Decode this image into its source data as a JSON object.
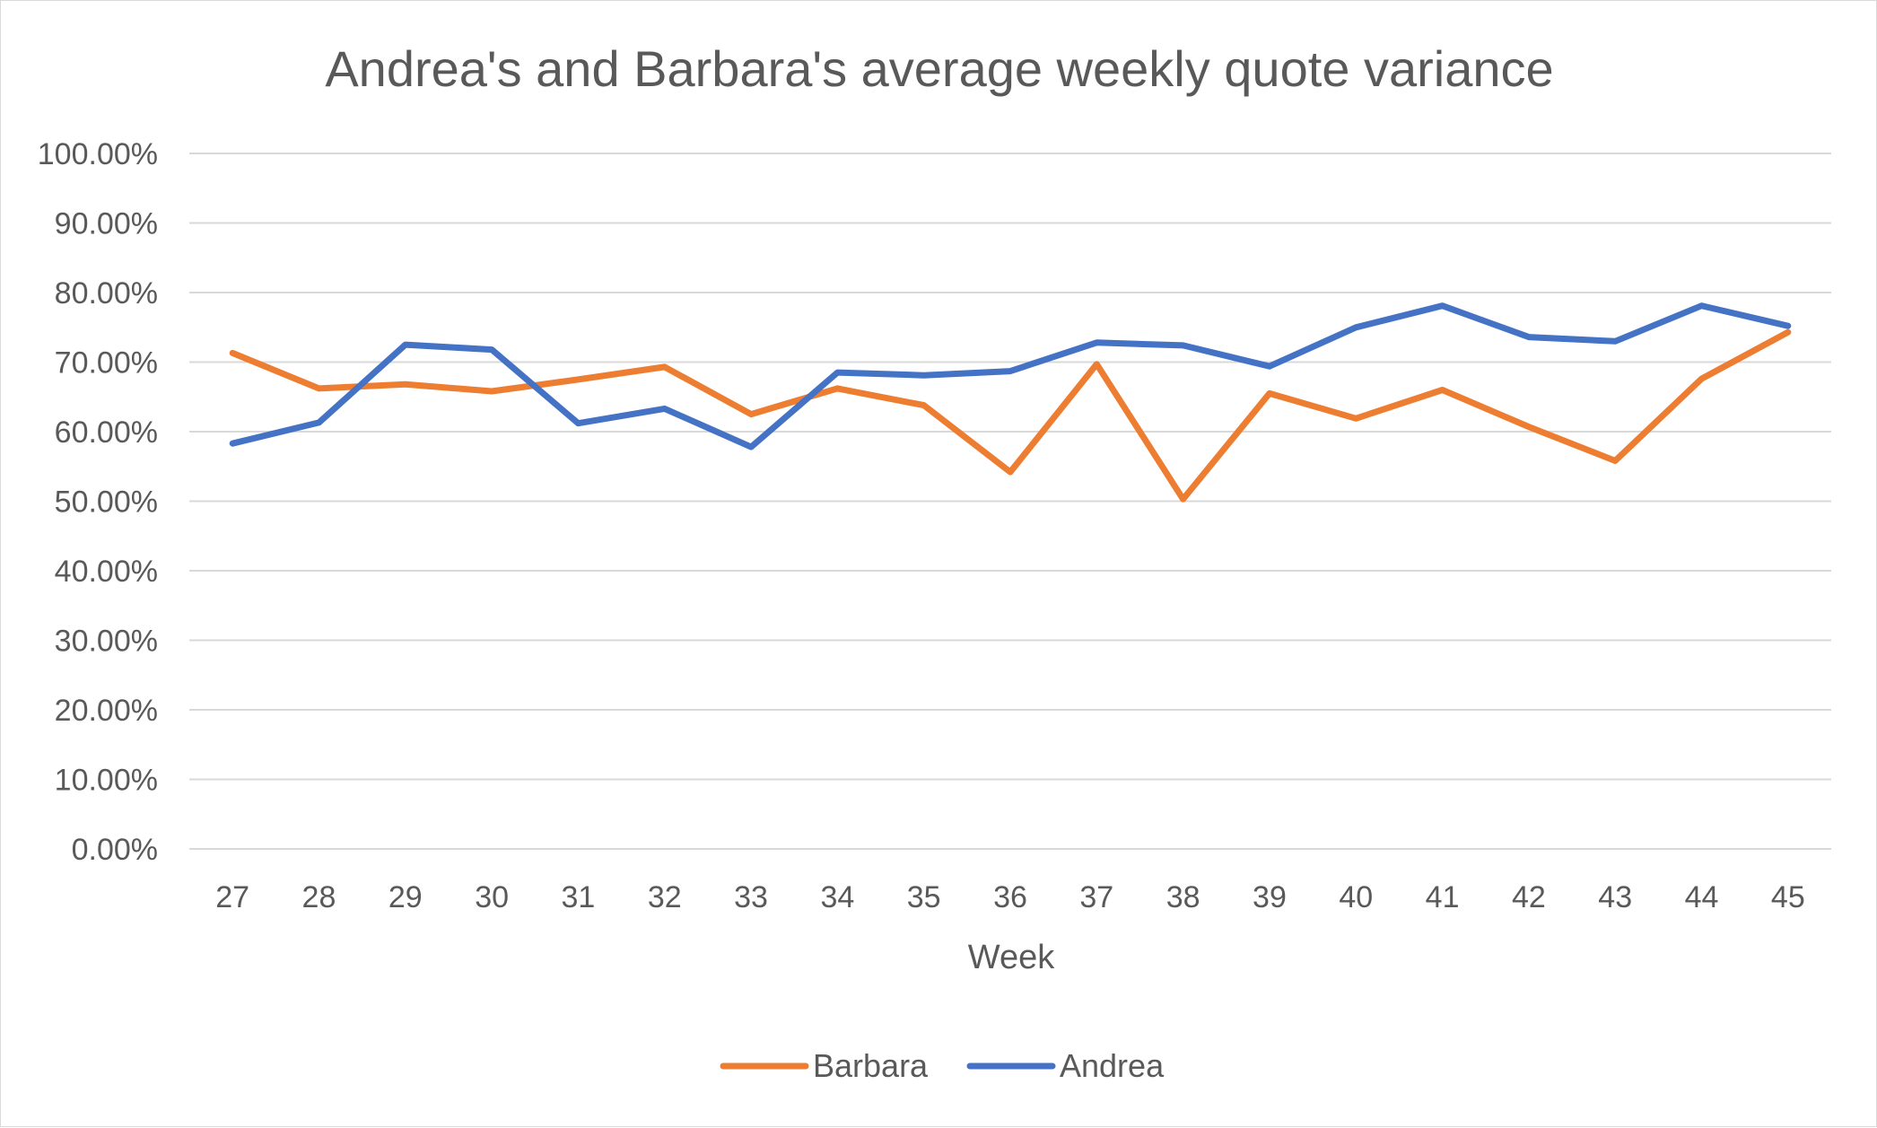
{
  "chart_data": {
    "type": "line",
    "title": "Andrea's and Barbara's average weekly quote variance",
    "xlabel": "Week",
    "ylabel": "",
    "categories": [
      "27",
      "28",
      "29",
      "30",
      "31",
      "32",
      "33",
      "34",
      "35",
      "36",
      "37",
      "38",
      "39",
      "40",
      "41",
      "42",
      "43",
      "44",
      "45"
    ],
    "ylim": [
      0,
      1
    ],
    "yticks": [
      "0.00%",
      "10.00%",
      "20.00%",
      "30.00%",
      "40.00%",
      "50.00%",
      "60.00%",
      "70.00%",
      "80.00%",
      "90.00%",
      "100.00%"
    ],
    "grid": true,
    "legend_position": "bottom",
    "series": [
      {
        "name": "Barbara",
        "color": "#ed7d31",
        "values": [
          0.713,
          0.662,
          0.668,
          0.658,
          0.675,
          0.693,
          0.625,
          0.662,
          0.638,
          0.542,
          0.697,
          0.503,
          0.655,
          0.619,
          0.66,
          0.607,
          0.558,
          0.676,
          0.743
        ]
      },
      {
        "name": "Andrea",
        "color": "#4472c4",
        "values": [
          0.583,
          0.613,
          0.725,
          0.718,
          0.612,
          0.633,
          0.578,
          0.685,
          0.681,
          0.687,
          0.728,
          0.724,
          0.694,
          0.75,
          0.781,
          0.736,
          0.73,
          0.781,
          0.752
        ]
      }
    ]
  }
}
